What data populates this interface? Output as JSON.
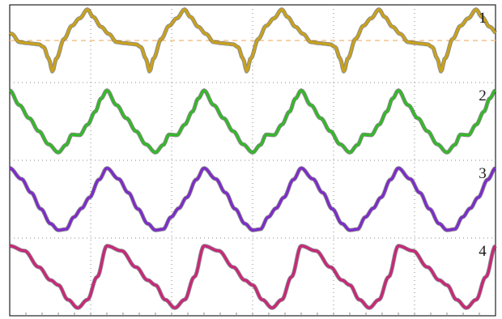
{
  "chart_data": {
    "type": "line",
    "title": "",
    "xlabel": "",
    "ylabel": "",
    "grid": true,
    "x_divisions": 6,
    "y_divisions": 4,
    "period_divisions": 1.2,
    "reference_level": {
      "trace": "1",
      "value": 0,
      "color": "#f2c48a",
      "style": "dashed"
    },
    "series": [
      {
        "label": "1",
        "color": "#c9a21c",
        "band": 0,
        "shape": [
          [
            0.0,
            -0.12
          ],
          [
            0.05,
            -0.2
          ],
          [
            0.1,
            -0.55
          ],
          [
            0.14,
            -0.95
          ],
          [
            0.18,
            -0.55
          ],
          [
            0.26,
            0.05
          ],
          [
            0.34,
            0.45
          ],
          [
            0.42,
            0.68
          ],
          [
            0.5,
            0.95
          ],
          [
            0.56,
            0.72
          ],
          [
            0.64,
            0.42
          ],
          [
            0.72,
            0.2
          ],
          [
            0.8,
            -0.05
          ],
          [
            0.88,
            -0.08
          ],
          [
            0.94,
            -0.1
          ],
          [
            1.0,
            -0.12
          ]
        ],
        "phase": 0.7
      },
      {
        "label": "2",
        "color": "#35b82a",
        "band": 1,
        "shape": [
          [
            0.0,
            0.95
          ],
          [
            0.1,
            0.5
          ],
          [
            0.2,
            0.1
          ],
          [
            0.3,
            -0.3
          ],
          [
            0.4,
            -0.7
          ],
          [
            0.5,
            -0.95
          ],
          [
            0.58,
            -0.72
          ],
          [
            0.64,
            -0.4
          ],
          [
            0.72,
            -0.42
          ],
          [
            0.8,
            -0.1
          ],
          [
            0.88,
            0.3
          ],
          [
            0.94,
            0.7
          ],
          [
            1.0,
            0.95
          ]
        ],
        "phase": 0.0
      },
      {
        "label": "3",
        "color": "#7d2cc9",
        "band": 2,
        "shape": [
          [
            0.0,
            0.95
          ],
          [
            0.12,
            0.62
          ],
          [
            0.22,
            0.2
          ],
          [
            0.32,
            -0.3
          ],
          [
            0.42,
            -0.75
          ],
          [
            0.5,
            -0.95
          ],
          [
            0.58,
            -0.92
          ],
          [
            0.66,
            -0.55
          ],
          [
            0.74,
            -0.28
          ],
          [
            0.82,
            0.05
          ],
          [
            0.92,
            0.6
          ],
          [
            1.0,
            0.95
          ]
        ],
        "phase": 0.0
      },
      {
        "label": "4",
        "color": "#c8287a",
        "band": 3,
        "shape": [
          [
            0.0,
            0.95
          ],
          [
            0.15,
            0.8
          ],
          [
            0.3,
            0.3
          ],
          [
            0.42,
            -0.1
          ],
          [
            0.5,
            -0.25
          ],
          [
            0.6,
            -0.7
          ],
          [
            0.7,
            -0.95
          ],
          [
            0.8,
            -0.7
          ],
          [
            0.9,
            0.0
          ],
          [
            1.0,
            0.95
          ]
        ],
        "phase": 0.0
      }
    ]
  }
}
